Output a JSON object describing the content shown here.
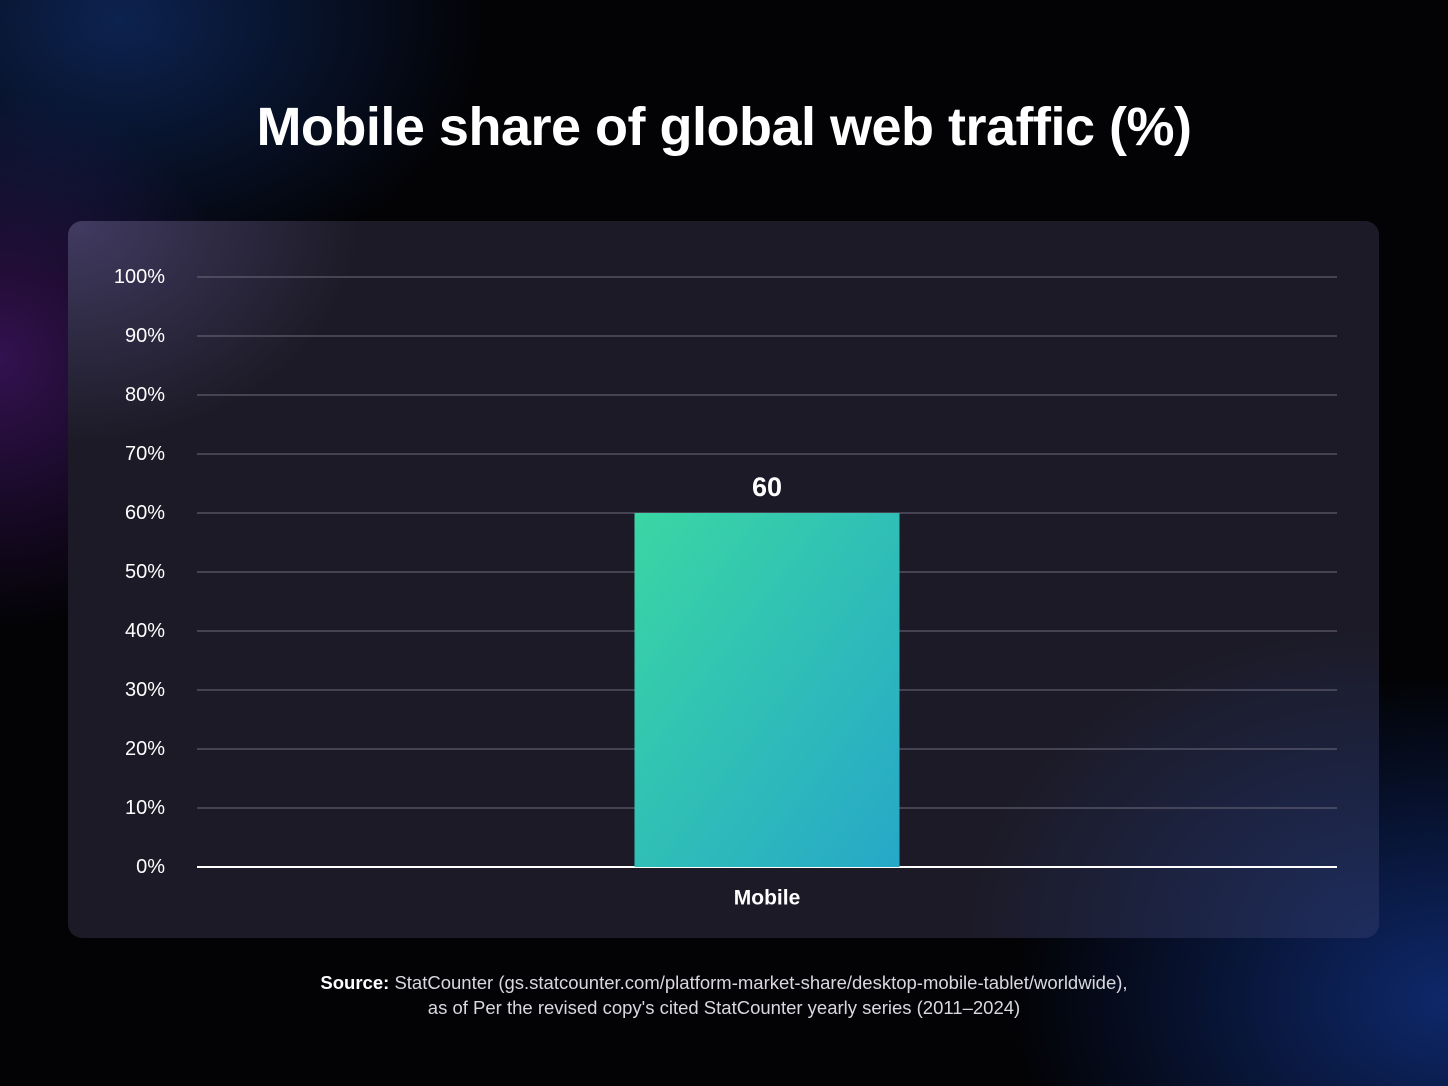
{
  "title": "Mobile share of global web traffic (%)",
  "source": {
    "label": "Source:",
    "line1": "StatCounter (gs.statcounter.com/platform-market-share/desktop-mobile-tablet/worldwide),",
    "line2": "as of Per the revised copy's cited StatCounter yearly series (2011–2024)"
  },
  "colors": {
    "bar_top": "#3ad6a4",
    "bar_bottom": "#26a8c8",
    "grid": "#6e6c7c",
    "axis": "#ffffff"
  },
  "chart_data": {
    "type": "bar",
    "title": "Mobile share of global web traffic (%)",
    "categories": [
      "Mobile"
    ],
    "values": [
      60
    ],
    "data_labels": [
      "60"
    ],
    "ylim": [
      0,
      100
    ],
    "yticks": [
      0,
      10,
      20,
      30,
      40,
      50,
      60,
      70,
      80,
      90,
      100
    ],
    "ytick_labels": [
      "0%",
      "10%",
      "20%",
      "30%",
      "40%",
      "50%",
      "60%",
      "70%",
      "80%",
      "90%",
      "100%"
    ],
    "xlabel": "",
    "ylabel": "",
    "grid": true,
    "legend": "none"
  }
}
